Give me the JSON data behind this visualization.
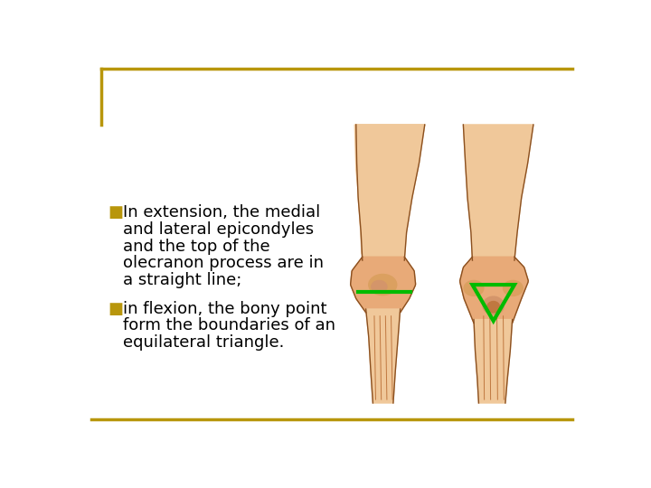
{
  "background_color": "#ffffff",
  "border_color": "#b8960c",
  "text_color": "#000000",
  "bullet_color": "#b8960c",
  "bullet1_line1": "In extension, the medial",
  "bullet1_line2": "and lateral epicondyles",
  "bullet1_line3": "and the top of the",
  "bullet1_line4": "olecranon process are in",
  "bullet1_line5": "a straight line;",
  "bullet2_line1": "in flexion, the bony point",
  "bullet2_line2": "form the boundaries of an",
  "bullet2_line3": "equilateral triangle.",
  "font_size": 13.0,
  "green_color": "#00bb00",
  "green_lw": 2.5,
  "skin_color1": "#f0c89a",
  "skin_color2": "#e8aa78",
  "skin_color3": "#dba060",
  "skin_shadow": "#c07840",
  "outline_color": "#8B5020",
  "bone_color": "#d4956a"
}
